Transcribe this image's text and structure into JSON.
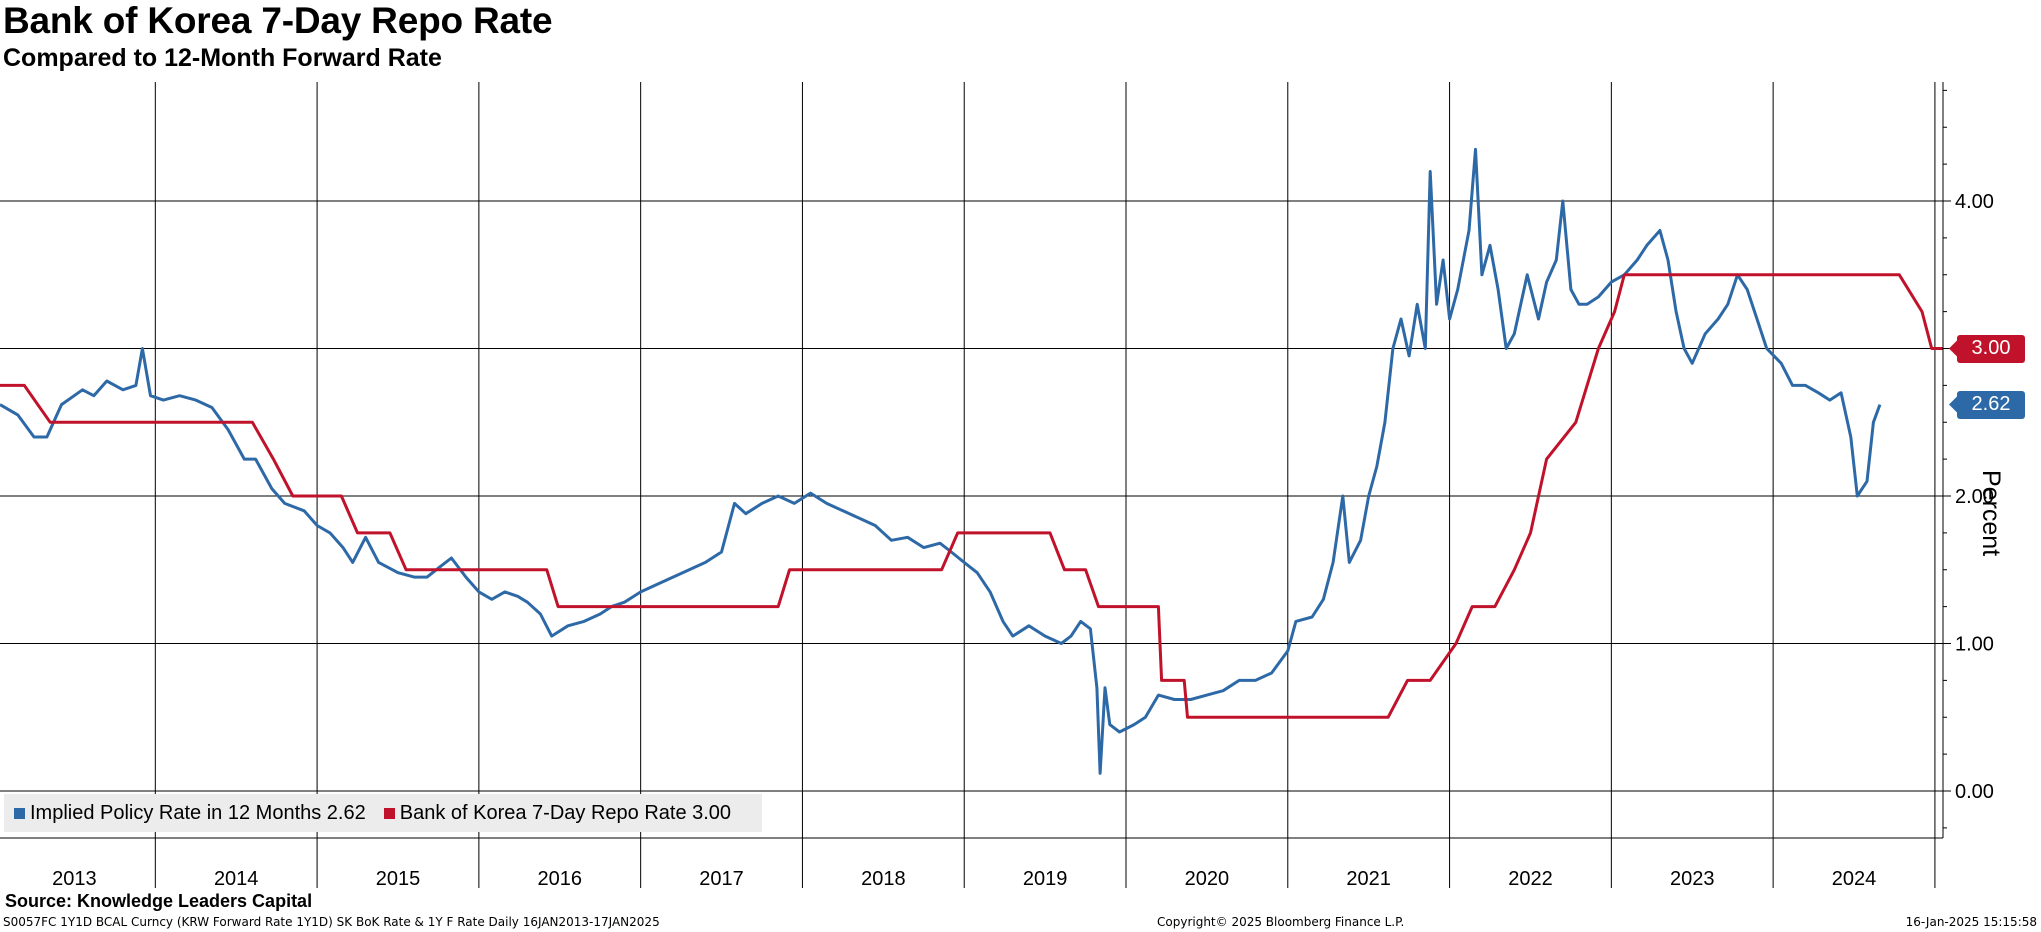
{
  "header": {
    "title": "Bank of Korea 7-Day Repo Rate",
    "subtitle": "Compared to 12-Month Forward Rate"
  },
  "legend": {
    "items": [
      {
        "label": "Implied Policy Rate in 12 Months 2.62",
        "color": "#2e69a7"
      },
      {
        "label": "Bank of Korea 7-Day Repo Rate 3.00",
        "color": "#c0132b"
      }
    ]
  },
  "tags": {
    "repo": {
      "value": "3.00",
      "color": "#c0132b"
    },
    "implied": {
      "value": "2.62",
      "color": "#2e69a7"
    }
  },
  "footer": {
    "source": "Source: Knowledge Leaders Capital",
    "series_info": "S0057FC 1Y1D BCAL Curncy (KRW Forward Rate 1Y1D) SK BoK Rate & 1Y F Rate  Daily 16JAN2013-17JAN2025",
    "copyright": "Copyright© 2025 Bloomberg Finance L.P.",
    "timestamp": "16-Jan-2025 15:15:58"
  },
  "chart_data": {
    "type": "line",
    "title": "Bank of Korea 7-Day Repo Rate",
    "subtitle": "Compared to 12-Month Forward Rate",
    "ylabel": "Percent",
    "y_axis_side": "right",
    "ylim": [
      -0.3,
      4.9
    ],
    "yticks": [
      "0.00",
      "1.00",
      "2.00",
      "3.00",
      "4.00"
    ],
    "ytick_values": [
      0,
      1,
      2,
      3,
      4
    ],
    "xlim": [
      2013.04,
      2025.05
    ],
    "x_categories": [
      "2013",
      "2014",
      "2015",
      "2016",
      "2017",
      "2018",
      "2019",
      "2020",
      "2021",
      "2022",
      "2023",
      "2024"
    ],
    "legend_position": "bottom-left",
    "grid": true,
    "series": [
      {
        "name": "Implied Policy Rate in 12 Months",
        "color": "#2e69a7",
        "last": 2.62,
        "points": [
          [
            2013.04,
            2.62
          ],
          [
            2013.15,
            2.55
          ],
          [
            2013.25,
            2.4
          ],
          [
            2013.33,
            2.4
          ],
          [
            2013.42,
            2.62
          ],
          [
            2013.55,
            2.72
          ],
          [
            2013.62,
            2.68
          ],
          [
            2013.7,
            2.78
          ],
          [
            2013.8,
            2.72
          ],
          [
            2013.88,
            2.75
          ],
          [
            2013.92,
            3.0
          ],
          [
            2013.97,
            2.68
          ],
          [
            2014.05,
            2.65
          ],
          [
            2014.15,
            2.68
          ],
          [
            2014.25,
            2.65
          ],
          [
            2014.35,
            2.6
          ],
          [
            2014.45,
            2.45
          ],
          [
            2014.55,
            2.25
          ],
          [
            2014.62,
            2.25
          ],
          [
            2014.72,
            2.05
          ],
          [
            2014.8,
            1.95
          ],
          [
            2014.92,
            1.9
          ],
          [
            2015.0,
            1.8
          ],
          [
            2015.08,
            1.75
          ],
          [
            2015.16,
            1.65
          ],
          [
            2015.22,
            1.55
          ],
          [
            2015.3,
            1.72
          ],
          [
            2015.38,
            1.55
          ],
          [
            2015.5,
            1.48
          ],
          [
            2015.6,
            1.45
          ],
          [
            2015.68,
            1.45
          ],
          [
            2015.76,
            1.52
          ],
          [
            2015.83,
            1.58
          ],
          [
            2015.92,
            1.45
          ],
          [
            2016.0,
            1.35
          ],
          [
            2016.08,
            1.3
          ],
          [
            2016.16,
            1.35
          ],
          [
            2016.24,
            1.32
          ],
          [
            2016.3,
            1.28
          ],
          [
            2016.38,
            1.2
          ],
          [
            2016.45,
            1.05
          ],
          [
            2016.55,
            1.12
          ],
          [
            2016.65,
            1.15
          ],
          [
            2016.75,
            1.2
          ],
          [
            2016.82,
            1.25
          ],
          [
            2016.9,
            1.28
          ],
          [
            2017.0,
            1.35
          ],
          [
            2017.1,
            1.4
          ],
          [
            2017.2,
            1.45
          ],
          [
            2017.3,
            1.5
          ],
          [
            2017.4,
            1.55
          ],
          [
            2017.5,
            1.62
          ],
          [
            2017.58,
            1.95
          ],
          [
            2017.65,
            1.88
          ],
          [
            2017.75,
            1.95
          ],
          [
            2017.85,
            2.0
          ],
          [
            2017.95,
            1.95
          ],
          [
            2018.05,
            2.02
          ],
          [
            2018.15,
            1.95
          ],
          [
            2018.25,
            1.9
          ],
          [
            2018.35,
            1.85
          ],
          [
            2018.45,
            1.8
          ],
          [
            2018.55,
            1.7
          ],
          [
            2018.65,
            1.72
          ],
          [
            2018.75,
            1.65
          ],
          [
            2018.85,
            1.68
          ],
          [
            2018.92,
            1.62
          ],
          [
            2019.0,
            1.55
          ],
          [
            2019.08,
            1.48
          ],
          [
            2019.16,
            1.35
          ],
          [
            2019.24,
            1.15
          ],
          [
            2019.3,
            1.05
          ],
          [
            2019.4,
            1.12
          ],
          [
            2019.5,
            1.05
          ],
          [
            2019.6,
            1.0
          ],
          [
            2019.66,
            1.05
          ],
          [
            2019.72,
            1.15
          ],
          [
            2019.78,
            1.1
          ],
          [
            2019.82,
            0.7
          ],
          [
            2019.84,
            0.12
          ],
          [
            2019.87,
            0.7
          ],
          [
            2019.9,
            0.45
          ],
          [
            2019.96,
            0.4
          ],
          [
            2020.05,
            0.45
          ],
          [
            2020.12,
            0.5
          ],
          [
            2020.2,
            0.65
          ],
          [
            2020.3,
            0.62
          ],
          [
            2020.4,
            0.62
          ],
          [
            2020.5,
            0.65
          ],
          [
            2020.6,
            0.68
          ],
          [
            2020.7,
            0.75
          ],
          [
            2020.8,
            0.75
          ],
          [
            2020.9,
            0.8
          ],
          [
            2021.0,
            0.95
          ],
          [
            2021.05,
            1.15
          ],
          [
            2021.15,
            1.18
          ],
          [
            2021.22,
            1.3
          ],
          [
            2021.28,
            1.55
          ],
          [
            2021.34,
            2.0
          ],
          [
            2021.38,
            1.55
          ],
          [
            2021.45,
            1.7
          ],
          [
            2021.5,
            2.0
          ],
          [
            2021.55,
            2.2
          ],
          [
            2021.6,
            2.5
          ],
          [
            2021.65,
            3.0
          ],
          [
            2021.7,
            3.2
          ],
          [
            2021.75,
            2.95
          ],
          [
            2021.8,
            3.3
          ],
          [
            2021.85,
            3.0
          ],
          [
            2021.88,
            4.2
          ],
          [
            2021.92,
            3.3
          ],
          [
            2021.96,
            3.6
          ],
          [
            2022.0,
            3.2
          ],
          [
            2022.05,
            3.4
          ],
          [
            2022.12,
            3.8
          ],
          [
            2022.16,
            4.35
          ],
          [
            2022.2,
            3.5
          ],
          [
            2022.25,
            3.7
          ],
          [
            2022.3,
            3.4
          ],
          [
            2022.35,
            3.0
          ],
          [
            2022.4,
            3.1
          ],
          [
            2022.48,
            3.5
          ],
          [
            2022.55,
            3.2
          ],
          [
            2022.6,
            3.45
          ],
          [
            2022.66,
            3.6
          ],
          [
            2022.7,
            4.0
          ],
          [
            2022.75,
            3.4
          ],
          [
            2022.8,
            3.3
          ],
          [
            2022.85,
            3.3
          ],
          [
            2022.92,
            3.35
          ],
          [
            2023.0,
            3.45
          ],
          [
            2023.08,
            3.5
          ],
          [
            2023.16,
            3.6
          ],
          [
            2023.22,
            3.7
          ],
          [
            2023.3,
            3.8
          ],
          [
            2023.35,
            3.6
          ],
          [
            2023.4,
            3.25
          ],
          [
            2023.45,
            3.0
          ],
          [
            2023.5,
            2.9
          ],
          [
            2023.58,
            3.1
          ],
          [
            2023.66,
            3.2
          ],
          [
            2023.72,
            3.3
          ],
          [
            2023.78,
            3.5
          ],
          [
            2023.84,
            3.4
          ],
          [
            2023.9,
            3.2
          ],
          [
            2023.96,
            3.0
          ],
          [
            2024.05,
            2.9
          ],
          [
            2024.12,
            2.75
          ],
          [
            2024.2,
            2.75
          ],
          [
            2024.28,
            2.7
          ],
          [
            2024.35,
            2.65
          ],
          [
            2024.42,
            2.7
          ],
          [
            2024.48,
            2.4
          ],
          [
            2024.52,
            2.0
          ],
          [
            2024.58,
            2.1
          ],
          [
            2024.62,
            2.5
          ],
          [
            2024.66,
            2.62
          ]
        ]
      },
      {
        "name": "Bank of Korea 7-Day Repo Rate",
        "color": "#c0132b",
        "last": 3.0,
        "points": [
          [
            2013.04,
            2.75
          ],
          [
            2013.19,
            2.75
          ],
          [
            2013.35,
            2.5
          ],
          [
            2014.6,
            2.5
          ],
          [
            2014.73,
            2.25
          ],
          [
            2014.85,
            2.0
          ],
          [
            2015.15,
            2.0
          ],
          [
            2015.25,
            1.75
          ],
          [
            2015.45,
            1.75
          ],
          [
            2015.55,
            1.5
          ],
          [
            2016.42,
            1.5
          ],
          [
            2016.49,
            1.25
          ],
          [
            2017.85,
            1.25
          ],
          [
            2017.92,
            1.5
          ],
          [
            2018.86,
            1.5
          ],
          [
            2018.96,
            1.75
          ],
          [
            2019.53,
            1.75
          ],
          [
            2019.62,
            1.5
          ],
          [
            2019.75,
            1.5
          ],
          [
            2019.83,
            1.25
          ],
          [
            2020.2,
            1.25
          ],
          [
            2020.22,
            0.75
          ],
          [
            2020.36,
            0.75
          ],
          [
            2020.38,
            0.5
          ],
          [
            2021.62,
            0.5
          ],
          [
            2021.74,
            0.75
          ],
          [
            2021.88,
            0.75
          ],
          [
            2022.04,
            1.0
          ],
          [
            2022.14,
            1.25
          ],
          [
            2022.28,
            1.25
          ],
          [
            2022.4,
            1.5
          ],
          [
            2022.5,
            1.75
          ],
          [
            2022.6,
            2.25
          ],
          [
            2022.78,
            2.5
          ],
          [
            2022.92,
            3.0
          ],
          [
            2023.02,
            3.25
          ],
          [
            2023.08,
            3.5
          ],
          [
            2024.78,
            3.5
          ],
          [
            2024.92,
            3.25
          ],
          [
            2024.98,
            3.0
          ],
          [
            2025.05,
            3.0
          ]
        ]
      }
    ]
  }
}
